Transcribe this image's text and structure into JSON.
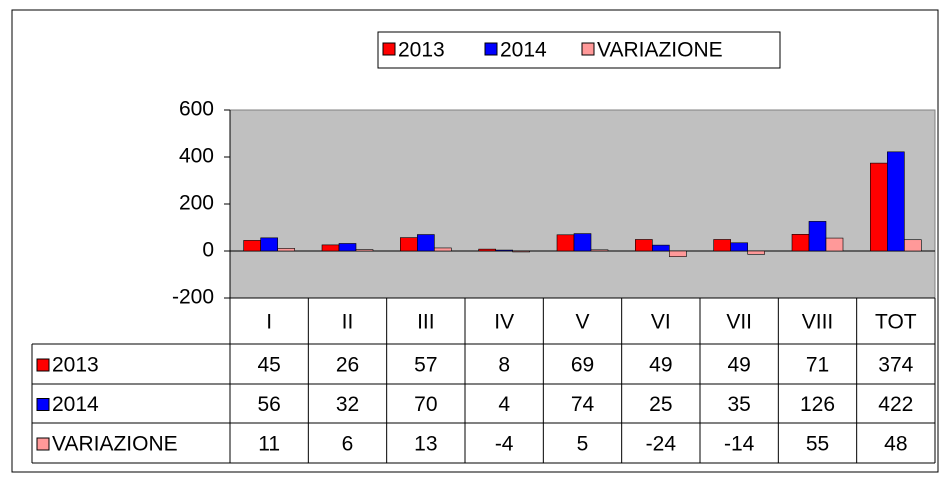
{
  "chart_data": {
    "type": "bar",
    "categories": [
      "I",
      "II",
      "III",
      "IV",
      "V",
      "VI",
      "VII",
      "VIII",
      "TOT"
    ],
    "series": [
      {
        "name": "2013",
        "color": "#ff0000",
        "values": [
          45,
          26,
          57,
          8,
          69,
          49,
          49,
          71,
          374
        ]
      },
      {
        "name": "2014",
        "color": "#0000ff",
        "values": [
          56,
          32,
          70,
          4,
          74,
          25,
          35,
          126,
          422
        ]
      },
      {
        "name": "VARIAZIONE",
        "color": "#ff9999",
        "values": [
          11,
          6,
          13,
          -4,
          5,
          -24,
          -14,
          55,
          48
        ]
      }
    ],
    "ylim": [
      -200,
      600
    ],
    "yticks": [
      -200,
      0,
      200,
      400,
      600
    ],
    "grid": false,
    "legend": "top"
  }
}
